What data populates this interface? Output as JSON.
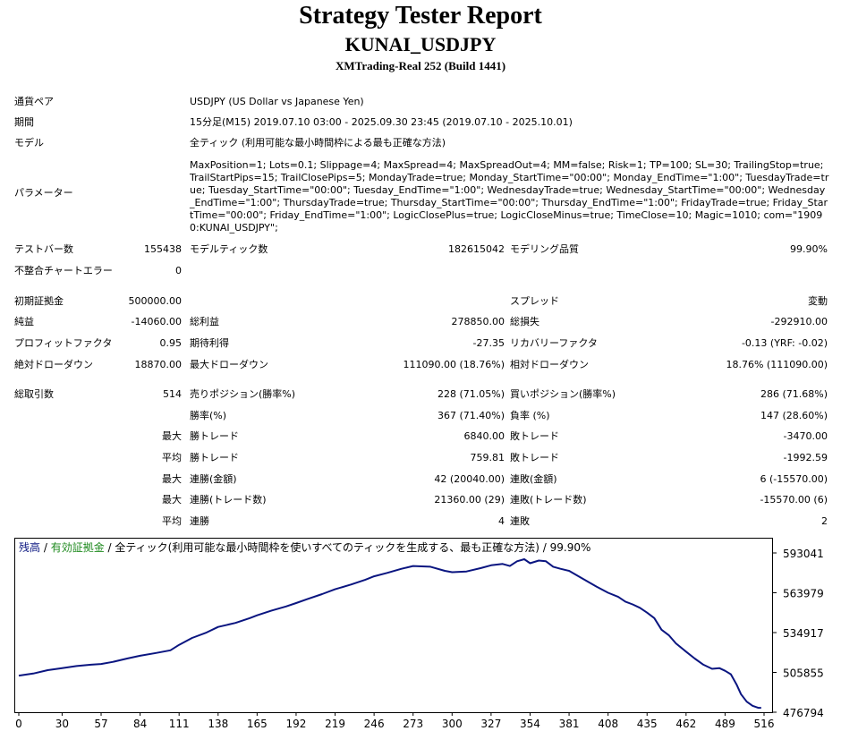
{
  "report": {
    "title": "Strategy Tester Report",
    "expert": "KUNAI_USDJPY",
    "server": "XMTrading-Real 252 (Build 1441)"
  },
  "info": {
    "symbol_label": "通貨ペア",
    "symbol": "USDJPY (US Dollar vs Japanese Yen)",
    "period_label": "期間",
    "period": "15分足(M15) 2019.07.10 03:00 - 2025.09.30 23:45 (2019.07.10 - 2025.10.01)",
    "model_label": "モデル",
    "model": "全ティック (利用可能な最小時間枠による最も正確な方法)",
    "params_label": "パラメーター",
    "params": "MaxPosition=1; Lots=0.1; Slippage=4; MaxSpread=4; MaxSpreadOut=4; MM=false; Risk=1; TP=100; SL=30; TrailingStop=true; TrailStartPips=15; TrailClosePips=5; MondayTrade=true; Monday_StartTime=\"00:00\"; Monday_EndTime=\"1:00\"; TuesdayTrade=true; Tuesday_StartTime=\"00:00\"; Tuesday_EndTime=\"1:00\"; WednesdayTrade=true; Wednesday_StartTime=\"00:00\"; Wednesday_EndTime=\"1:00\"; ThursdayTrade=true; Thursday_StartTime=\"00:00\"; Thursday_EndTime=\"1:00\"; FridayTrade=true; Friday_StartTime=\"00:00\"; Friday_EndTime=\"1:00\"; LogicClosePlus=true; LogicCloseMinus=true; TimeClose=10; Magic=1010; com=\"19090:KUNAI_USDJPY\";"
  },
  "stats": {
    "bars_label": "テストバー数",
    "bars": "155438",
    "ticks_label": "モデルティック数",
    "ticks": "182615042",
    "quality_label": "モデリング品質",
    "quality": "99.90%",
    "mismatch_label": "不整合チャートエラー",
    "mismatch": "0",
    "deposit_label": "初期証拠金",
    "deposit": "500000.00",
    "spread_label": "スプレッド",
    "spread": "変動",
    "net_label": "純益",
    "net": "-14060.00",
    "gross_profit_label": "総利益",
    "gross_profit": "278850.00",
    "gross_loss_label": "総損失",
    "gross_loss": "-292910.00",
    "pf_label": "プロフィットファクタ",
    "pf": "0.95",
    "payoff_label": "期待利得",
    "payoff": "-27.35",
    "recovery_label": "リカバリーファクタ",
    "recovery": "-0.13 (YRF: -0.02)",
    "abs_dd_label": "絶対ドローダウン",
    "abs_dd": "18870.00",
    "max_dd_label": "最大ドローダウン",
    "max_dd": "111090.00 (18.76%)",
    "rel_dd_label": "相対ドローダウン",
    "rel_dd": "18.76% (111090.00)",
    "trades_label": "総取引数",
    "trades": "514",
    "short_label": "売りポジション(勝率%)",
    "short": "228 (71.05%)",
    "long_label": "買いポジション(勝率%)",
    "long": "286 (71.68%)",
    "win_label": "勝率(%)",
    "win": "367 (71.40%)",
    "loss_label": "負率 (%)",
    "loss": "147 (28.60%)",
    "max_prefix": "最大",
    "avg_prefix": "平均",
    "largest_win_label": "勝トレード",
    "largest_win": "6840.00",
    "largest_loss_label": "敗トレード",
    "largest_loss": "-3470.00",
    "avg_win_label": "勝トレード",
    "avg_win": "759.81",
    "avg_loss_label": "敗トレード",
    "avg_loss": "-1992.59",
    "max_cons_wins_label": "連勝(金額)",
    "max_cons_wins": "42 (20040.00)",
    "max_cons_losses_label": "連敗(金額)",
    "max_cons_losses": "6 (-15570.00)",
    "max_cons_profit_label": "連勝(トレード数)",
    "max_cons_profit": "21360.00 (29)",
    "max_cons_loss_label": "連敗(トレード数)",
    "max_cons_loss": "-15570.00 (6)",
    "avg_cons_wins_label": "連勝",
    "avg_cons_wins": "4",
    "avg_cons_losses_label": "連敗",
    "avg_cons_losses": "2"
  },
  "chart_data": {
    "type": "line",
    "legend": {
      "balance": "残高",
      "sep1": " / ",
      "equity": "有効証拠金",
      "sep2": " / ",
      "rest": "全ティック(利用可能な最小時間枠を使いすべてのティックを生成する、最も正確な方法) / 99.90%"
    },
    "colors": {
      "line": "#0a1580",
      "balance": "#0a1580",
      "equity": "#1f8a1f",
      "text": "#000000"
    },
    "x_ticks": [
      0,
      30,
      57,
      84,
      111,
      138,
      165,
      192,
      219,
      246,
      273,
      300,
      327,
      354,
      381,
      408,
      435,
      462,
      489,
      516
    ],
    "y_ticks": [
      593041,
      563979,
      534917,
      505855,
      476794
    ],
    "xlim": [
      0,
      514
    ],
    "ylim": [
      476794,
      598000
    ],
    "series": [
      {
        "x": [
          0,
          10,
          20,
          30,
          40,
          50,
          57,
          65,
          75,
          84,
          95,
          105,
          111,
          120,
          130,
          138,
          150,
          160,
          165,
          175,
          185,
          192,
          200,
          210,
          219,
          230,
          240,
          246,
          255,
          265,
          273,
          285,
          295,
          300,
          310,
          320,
          327,
          335,
          340,
          345,
          350,
          354,
          360,
          365,
          370,
          375,
          381,
          390,
          400,
          408,
          415,
          420,
          425,
          430,
          435,
          440,
          445,
          450,
          455,
          462,
          468,
          474,
          480,
          485,
          489,
          493,
          497,
          500,
          504,
          508,
          512,
          514
        ],
        "y": [
          503500,
          505000,
          507500,
          509000,
          510500,
          511500,
          512000,
          513500,
          516000,
          518000,
          520000,
          522000,
          526000,
          531000,
          535000,
          539000,
          542000,
          545500,
          547500,
          551000,
          554000,
          556500,
          559500,
          563000,
          566500,
          570000,
          573500,
          576000,
          578500,
          581500,
          583500,
          583000,
          580000,
          579000,
          579500,
          582000,
          584000,
          585000,
          583500,
          587000,
          588500,
          585500,
          587500,
          587000,
          583000,
          581500,
          580000,
          574500,
          568500,
          564000,
          561000,
          557500,
          555500,
          553000,
          549500,
          545500,
          537000,
          533000,
          527000,
          521000,
          516000,
          511500,
          508500,
          509000,
          507000,
          504500,
          497000,
          490000,
          484500,
          481500,
          480000,
          480000
        ]
      }
    ]
  }
}
